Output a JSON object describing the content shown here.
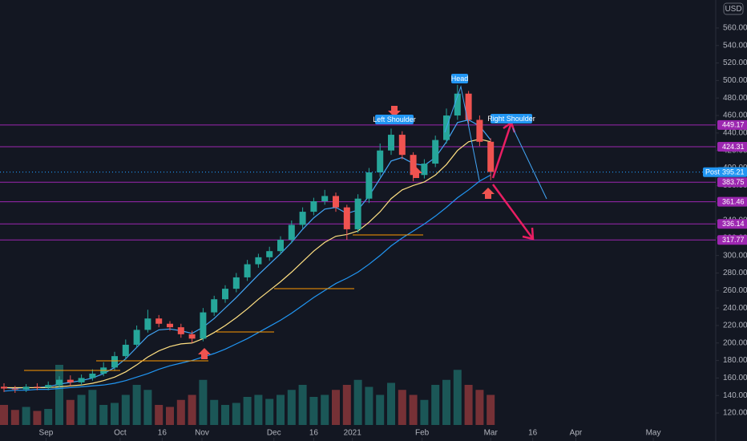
{
  "chart_data": {
    "type": "candlestick",
    "currency": "USD",
    "ylim": [
      88,
      592
    ],
    "yticks": [
      {
        "value": 120,
        "label": "120.00"
      },
      {
        "value": 140,
        "label": "140.00"
      },
      {
        "value": 160,
        "label": "160.00"
      },
      {
        "value": 180,
        "label": "180.00"
      },
      {
        "value": 200,
        "label": "200.00"
      },
      {
        "value": 220,
        "label": "220.00"
      },
      {
        "value": 240,
        "label": "240.00"
      },
      {
        "value": 260,
        "label": "260.00"
      },
      {
        "value": 280,
        "label": "280.00"
      },
      {
        "value": 300,
        "label": "300.00"
      },
      {
        "value": 320,
        "label": "320.00"
      },
      {
        "value": 340,
        "label": "340.00"
      },
      {
        "value": 360,
        "label": "360.00"
      },
      {
        "value": 380,
        "label": "380.00"
      },
      {
        "value": 400,
        "label": "400.00"
      },
      {
        "value": 420,
        "label": "420.00"
      },
      {
        "value": 440,
        "label": "440.00"
      },
      {
        "value": 460,
        "label": "460.00"
      },
      {
        "value": 480,
        "label": "480.00"
      },
      {
        "value": 500,
        "label": "500.00"
      },
      {
        "value": 520,
        "label": "520.00"
      },
      {
        "value": 540,
        "label": "540.00"
      },
      {
        "value": 560,
        "label": "560.00"
      }
    ],
    "xticks": [
      {
        "value": 3.8,
        "label": "Sep"
      },
      {
        "value": 10.5,
        "label": "Oct"
      },
      {
        "value": 14.3,
        "label": "16"
      },
      {
        "value": 17.9,
        "label": "Nov"
      },
      {
        "value": 24.4,
        "label": "Dec"
      },
      {
        "value": 28,
        "label": "16"
      },
      {
        "value": 31.5,
        "label": "2021"
      },
      {
        "value": 37.8,
        "label": "Feb"
      },
      {
        "value": 44,
        "label": "Mar"
      },
      {
        "value": 47.8,
        "label": "16"
      },
      {
        "value": 51.7,
        "label": "Apr"
      },
      {
        "value": 58.7,
        "label": "May"
      }
    ],
    "up_color": "#26a69a",
    "down_color": "#ef5350",
    "open": [
      150,
      148,
      147,
      150,
      149,
      152,
      158,
      155,
      160,
      165,
      172,
      185,
      198,
      215,
      228,
      222,
      218,
      210,
      205,
      235,
      250,
      262,
      275,
      290,
      298,
      305,
      318,
      335,
      350,
      362,
      368,
      355,
      330,
      365,
      395,
      420,
      438,
      415,
      392,
      405,
      432,
      460,
      485,
      455,
      430
    ],
    "high": [
      154,
      151,
      153,
      154,
      156,
      162,
      163,
      164,
      170,
      178,
      190,
      204,
      220,
      238,
      232,
      225,
      222,
      214,
      240,
      254,
      266,
      280,
      295,
      302,
      310,
      322,
      340,
      355,
      366,
      375,
      372,
      358,
      370,
      400,
      428,
      445,
      442,
      418,
      410,
      437,
      468,
      495,
      488,
      460,
      434
    ],
    "low": [
      144,
      143,
      144,
      146,
      146,
      149,
      151,
      152,
      157,
      162,
      168,
      181,
      195,
      212,
      218,
      214,
      206,
      200,
      202,
      231,
      246,
      258,
      271,
      286,
      294,
      301,
      314,
      331,
      346,
      358,
      350,
      318,
      326,
      360,
      390,
      415,
      410,
      385,
      388,
      401,
      428,
      455,
      450,
      425,
      386
    ],
    "close": [
      148,
      147,
      150,
      149,
      152,
      158,
      155,
      160,
      165,
      172,
      185,
      198,
      215,
      228,
      222,
      218,
      210,
      205,
      235,
      250,
      262,
      275,
      290,
      298,
      305,
      318,
      335,
      350,
      362,
      368,
      355,
      330,
      365,
      395,
      420,
      438,
      415,
      392,
      405,
      432,
      460,
      485,
      455,
      430,
      395.48
    ],
    "volume": [
      20,
      15,
      18,
      14,
      16,
      60,
      25,
      30,
      35,
      20,
      22,
      30,
      40,
      35,
      20,
      18,
      25,
      30,
      45,
      25,
      20,
      22,
      28,
      30,
      26,
      30,
      35,
      40,
      28,
      30,
      35,
      40,
      45,
      38,
      30,
      42,
      35,
      30,
      25,
      40,
      45,
      55,
      40,
      35,
      30
    ],
    "moving_averages": [
      {
        "color": "#42a5f5",
        "values": [
          149,
          148,
          149,
          149,
          150,
          153,
          155,
          157,
          160,
          165,
          172,
          182,
          195,
          208,
          215,
          216,
          214,
          211,
          218,
          228,
          240,
          252,
          265,
          278,
          290,
          302,
          315,
          330,
          343,
          353,
          355,
          348,
          352,
          368,
          388,
          408,
          412,
          405,
          403,
          412,
          430,
          452,
          455,
          448,
          432
        ]
      },
      {
        "color": "#ffe082",
        "values": [
          149,
          149,
          149,
          149,
          149,
          150,
          151,
          152,
          154,
          157,
          161,
          167,
          175,
          184,
          191,
          196,
          199,
          200,
          205,
          212,
          220,
          229,
          239,
          250,
          260,
          270,
          281,
          293,
          305,
          315,
          322,
          324,
          328,
          338,
          350,
          365,
          375,
          380,
          384,
          392,
          404,
          420,
          430,
          433,
          430
        ]
      },
      {
        "color": "#2196f3",
        "values": [
          145,
          146,
          146,
          147,
          147,
          148,
          149,
          150,
          151,
          152,
          154,
          157,
          161,
          165,
          170,
          174,
          177,
          180,
          184,
          188,
          193,
          199,
          205,
          212,
          219,
          226,
          234,
          243,
          252,
          260,
          268,
          274,
          281,
          290,
          300,
          311,
          320,
          328,
          336,
          345,
          355,
          366,
          375,
          385,
          392
        ]
      }
    ],
    "price_lines": [
      449.17,
      424.31,
      383.75,
      361.46,
      336.14,
      317.77
    ],
    "price_line_color": "#9c27b0",
    "last_price": 395.48,
    "post_price": 395.21,
    "post_label": "Post",
    "annotations": {
      "head": "Head",
      "left_shoulder": "Left Shoulder",
      "right_shoulder": "Right Shoulder"
    }
  }
}
